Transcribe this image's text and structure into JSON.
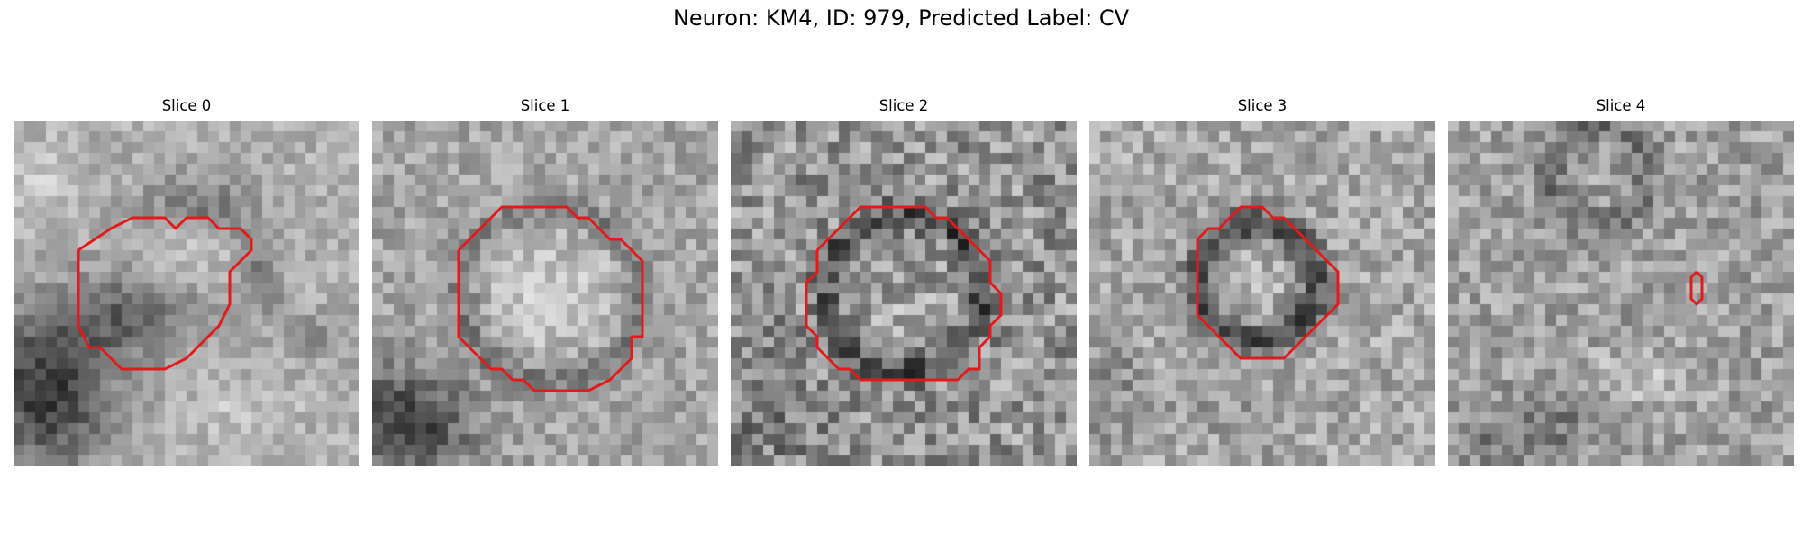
{
  "figure": {
    "title": "Neuron: KM4, ID: 979, Predicted Label: CV",
    "contour_color": "#e31a1c",
    "colormap": "gray",
    "grid_size": 32
  },
  "slices": [
    {
      "title": "Slice 0"
    },
    {
      "title": "Slice 1"
    },
    {
      "title": "Slice 2"
    },
    {
      "title": "Slice 3"
    },
    {
      "title": "Slice 4"
    }
  ]
}
